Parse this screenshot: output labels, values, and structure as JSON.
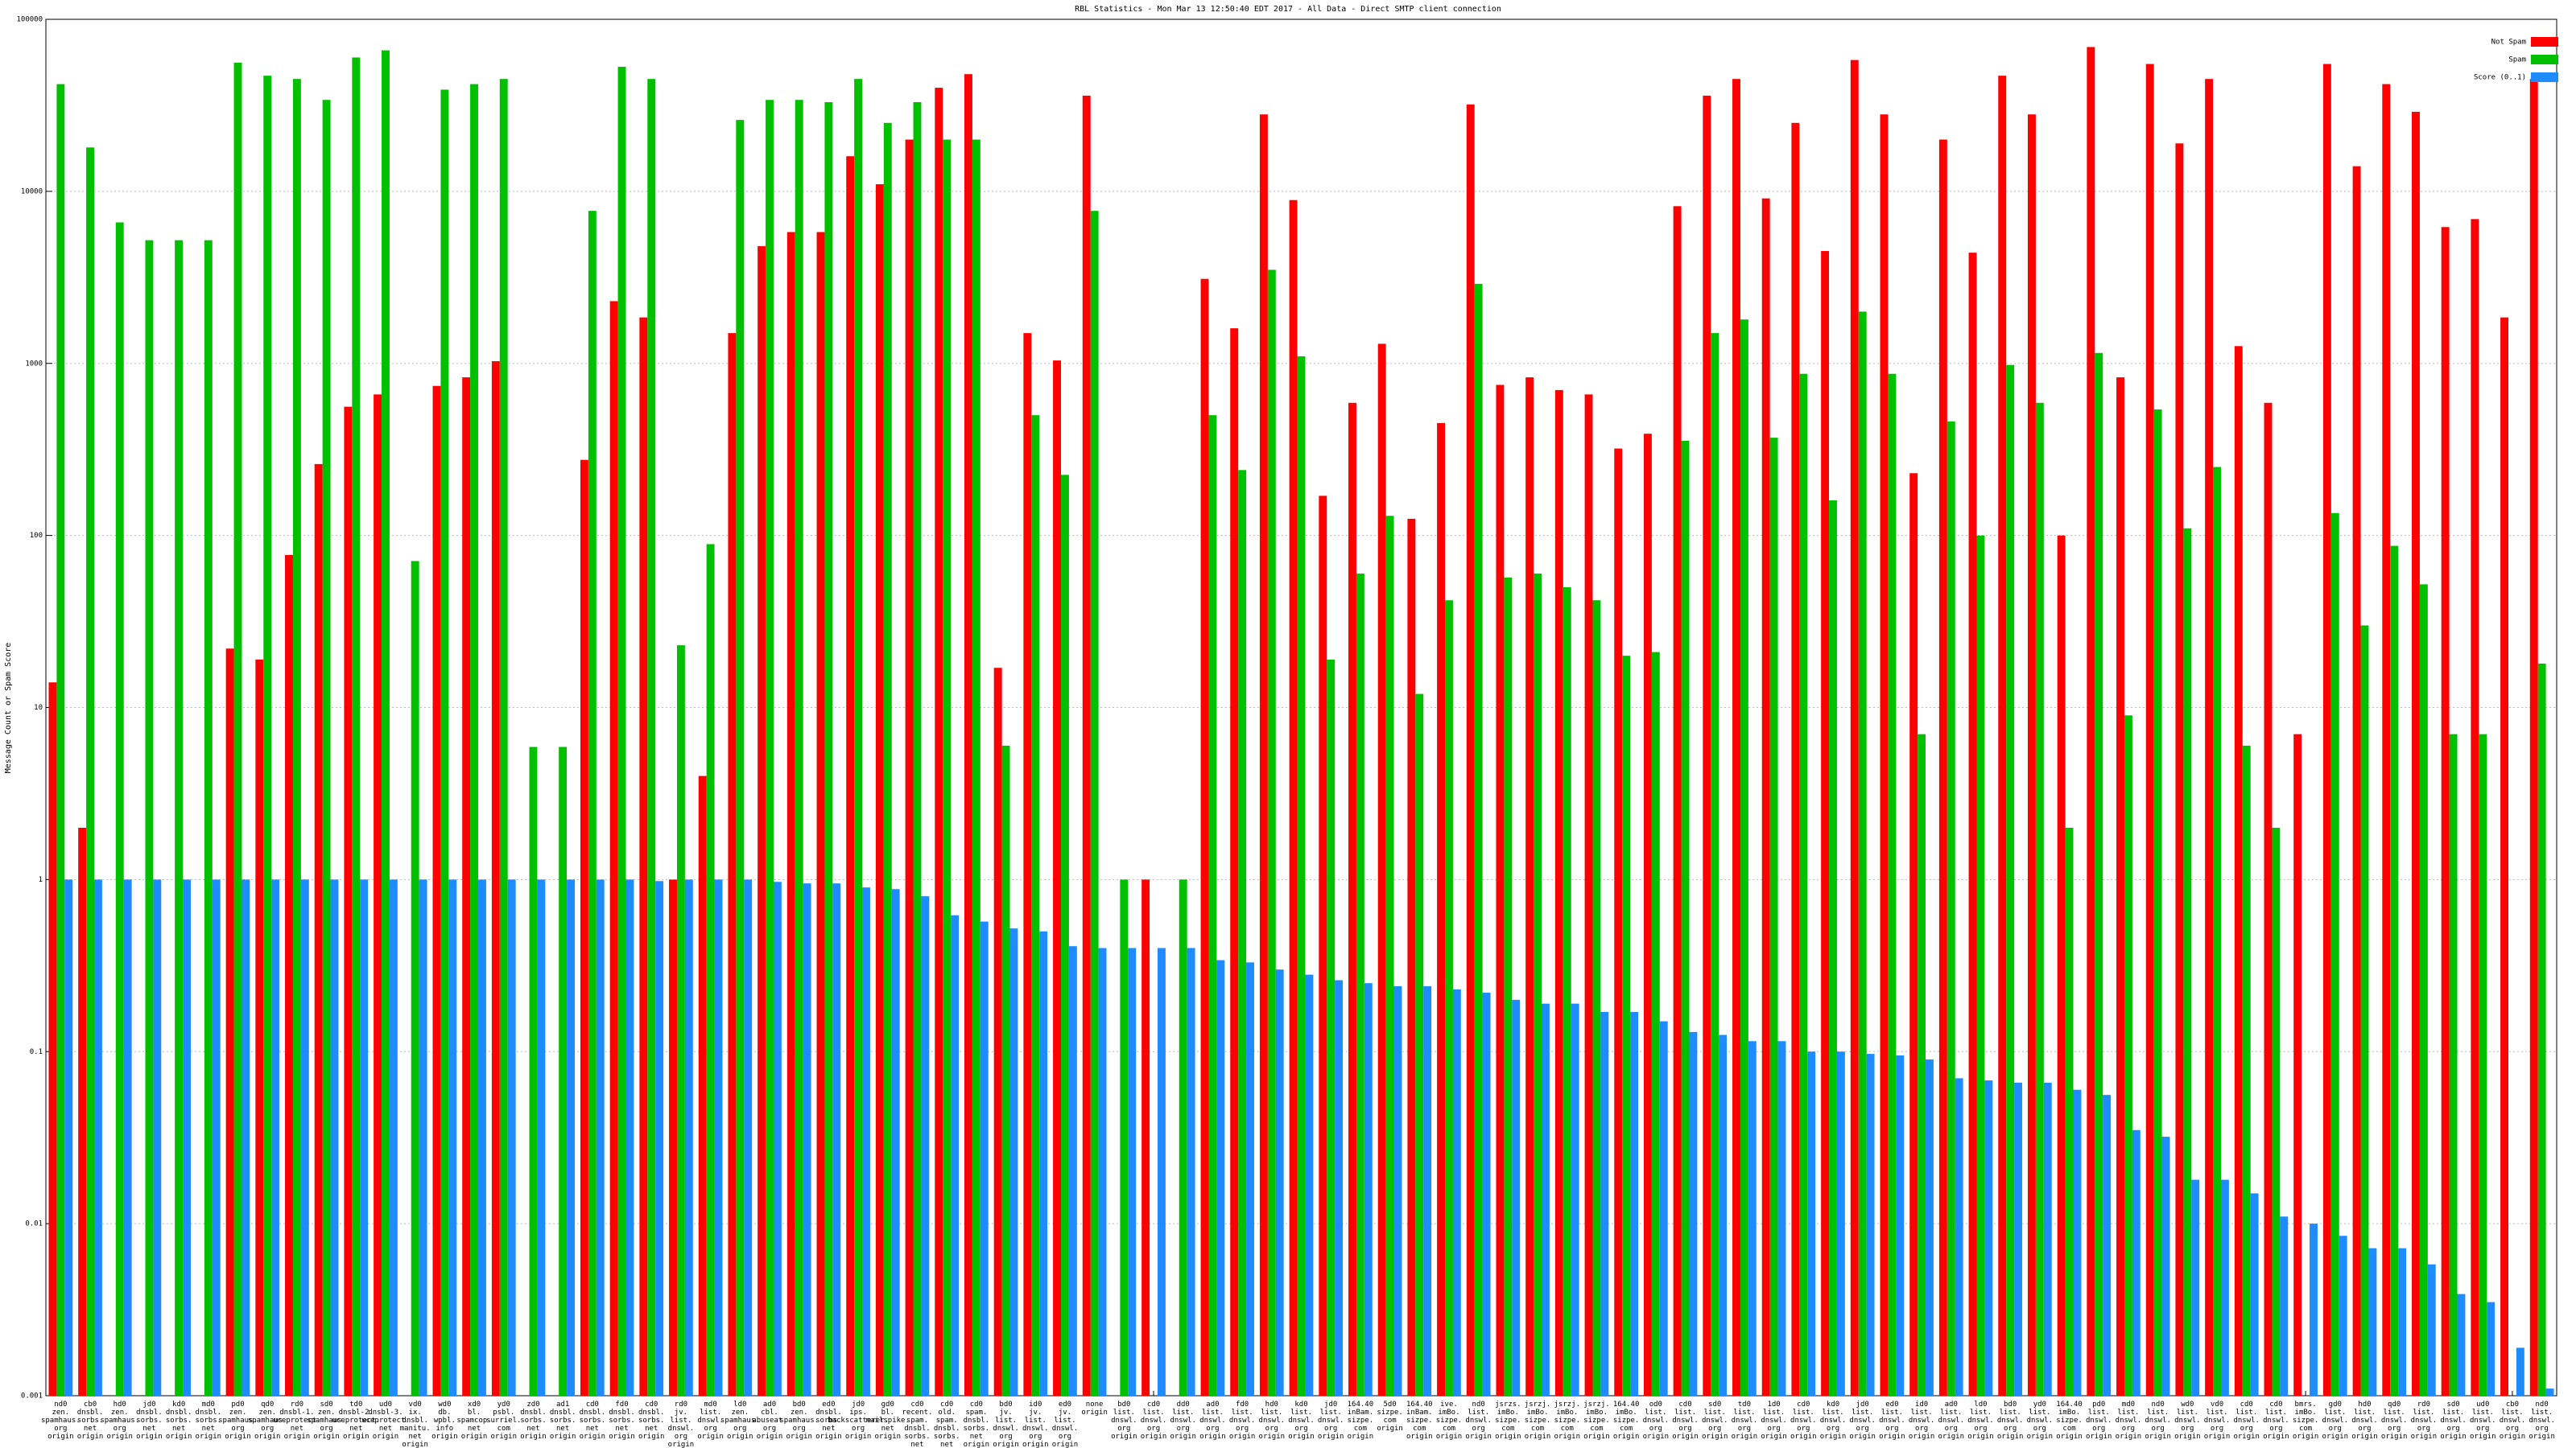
{
  "chart_data": {
    "type": "bar",
    "title": "RBL Statistics - Mon Mar 13 12:50:40 EDT 2017 - All Data - Direct SMTP client connection",
    "y_label": "Message Count or Spam Score",
    "log_y": true,
    "grid": true,
    "legend": "top-right",
    "ylim": [
      0.001,
      100000
    ],
    "yticks": [
      0.001,
      0.01,
      0.1,
      1,
      10,
      100,
      1000,
      10000,
      100000
    ],
    "categories": [
      "nd0 zen. spamhaus. org origin",
      "cb0 dnsbl. sorbs. net origin",
      "hd0 zen. spamhaus. org origin",
      "jd0 dnsbl. sorbs. net origin",
      "kd0 dnsbl. sorbs. net origin",
      "md0 dnsbl. sorbs. net origin",
      "pd0 zen. spamhaus. org origin",
      "qd0 zen. spamhaus. org origin",
      "rd0 dnsbl-1. uceprotect. net origin",
      "sd0 zen. spamhaus. org origin",
      "td0 dnsbl-2. uceprotect. net origin",
      "ud0 dnsbl-3. uceprotect. net origin",
      "vd0 ix. dnsbl. manitu. net origin",
      "wd0 db. wpbl. info origin",
      "xd0 bl. spamcop. net origin",
      "yd0 psbl. surriel. com origin",
      "zd0 dnsbl. sorbs. net origin",
      "ad1 dnsbl. sorbs. net origin",
      "cd0 dnsbl. sorbs. net origin",
      "fd0 dnsbl. sorbs. net origin",
      "cd0 dnsbl. sorbs. net origin",
      "rd0 jv. list. dnswl. org origin",
      "md0 list. dnswl. org origin",
      "ld0 zen. spamhaus. org origin",
      "ad0 cbl. abuseat. org origin",
      "bd0 zen. spamhaus. org origin",
      "ed0 dnsbl. sorbs. net origin",
      "jd0 ips. backscatterer. org origin",
      "gd0 bl. mailspike. net origin",
      "cd0 recent. spam. dnsbl. sorbs. net origin",
      "cd0 old. spam. dnsbl. sorbs. net origin",
      "cd0 spam. dnsbl. sorbs. net origin",
      "bd0 jv. list. dnswl. org origin",
      "id0 jv. list. dnswl. org origin",
      "ed0 jv. list. dnswl. org origin",
      "none origin",
      "bd0 list. dnswl. org origin",
      "cd0 list. dnswl. org origin",
      "dd0 list. dnswl. org origin",
      "ad0 list. dnswl. org origin",
      "fd0 list. dnswl. org origin",
      "hd0 list. dnswl. org origin",
      "kd0 list. dnswl. org origin",
      "jd0 list. dnswl. org origin",
      "164.40 inBam. sizpe. com origin",
      "5d0 sizpe. com origin",
      "164.40 inBam. sizpe. com origin",
      "ive. imBo. sizpe. com origin",
      "nd0 list. dnswl. org origin",
      "jsrzs. imBo. sizpe. com origin",
      "jsrzj. imBo. sizpe. com origin",
      "jsrzj. imBo. sizpe. com origin",
      "jsrzj. imBo. sizpe. com origin",
      "164.40 imBo. sizpe. com origin",
      "od0 list. dnswl. org origin",
      "cd0 list. dnswl. org origin",
      "sd0 list. dnswl. org origin",
      "td0 list. dnswl. org origin",
      "1d0 list. dnswl. org origin",
      "cd0 list. dnswl. org origin",
      "kd0 list. dnswl. org origin",
      "jd0 list. dnswl. org origin",
      "ed0 list. dnswl. org origin",
      "id0 list. dnswl. org origin",
      "ad0 list. dnswl. org origin",
      "ld0 list. dnswl. org origin",
      "bd0 list. dnswl. org origin",
      "yd0 list. dnswl. org origin",
      "164.40 imBo. sizpe. com origin",
      "pd0 list. dnswl. org origin",
      "md0 list. dnswl. org origin",
      "nd0 list. dnswl. org origin",
      "wd0 list. dnswl. org origin",
      "vd0 list. dnswl. org origin",
      "cd0 list. dnswl. org origin",
      "cd0 list. dnswl. org origin",
      "bmrs. imBo. sizpe. com origin",
      "gd0 list. dnswl. org origin",
      "hd0 list. dnswl. org origin",
      "qd0 list. dnswl. org origin",
      "rd0 list. dnswl. org origin",
      "sd0 list. dnswl. org origin",
      "ud0 list. dnswl. org origin",
      "cb0 list. dnswl. org origin",
      "nd0 list. dnswl. org origin"
    ],
    "series": [
      {
        "name": "Not Spam",
        "color": "#ff0000",
        "values": [
          14,
          2,
          null,
          null,
          null,
          null,
          22,
          19,
          77,
          260,
          560,
          660,
          null,
          740,
          830,
          1030,
          null,
          null,
          275,
          2300,
          1850,
          1,
          4,
          1500,
          4800,
          5800,
          5800,
          16000,
          11000,
          20000,
          40000,
          48000,
          17,
          1500,
          1040,
          36000,
          null,
          1,
          null,
          3100,
          1600,
          28000,
          8900,
          170,
          590,
          1300,
          125,
          450,
          32000,
          750,
          830,
          700,
          660,
          320,
          390,
          8200,
          36000,
          45000,
          9100,
          25000,
          4500,
          58000,
          28000,
          230,
          20000,
          4400,
          47000,
          28000,
          100,
          69000,
          830,
          55000,
          19000,
          45000,
          1260,
          590,
          7,
          55000,
          14000,
          42000,
          29000,
          6200,
          6900,
          1850,
          45000
        ]
      },
      {
        "name": "Spam",
        "color": "#00c000",
        "values": [
          42000,
          18000,
          6600,
          5200,
          5200,
          5200,
          56000,
          47000,
          45000,
          34000,
          60000,
          66000,
          71,
          39000,
          42000,
          45000,
          5.9,
          5.9,
          7700,
          53000,
          45000,
          23,
          89,
          26000,
          34000,
          34000,
          33000,
          45000,
          25000,
          33000,
          20000,
          20000,
          6,
          500,
          225,
          7700,
          1,
          null,
          1,
          500,
          240,
          3500,
          1100,
          19,
          60,
          130,
          12,
          42,
          2900,
          57,
          60,
          50,
          42,
          20,
          21,
          355,
          1500,
          1800,
          370,
          870,
          160,
          2000,
          870,
          7,
          460,
          100,
          980,
          590,
          2,
          1150,
          9,
          540,
          110,
          250,
          6,
          2,
          null,
          135,
          30,
          87,
          52,
          7,
          7,
          null,
          18
        ]
      },
      {
        "name": "Score (0..1)",
        "color": "#1e8cff",
        "values": [
          1,
          1,
          1,
          1,
          1,
          1,
          1,
          1,
          1,
          1,
          1,
          1,
          1,
          1,
          1,
          1,
          1,
          1,
          1,
          1,
          0.98,
          1,
          1,
          1,
          0.97,
          0.95,
          0.95,
          0.9,
          0.88,
          0.8,
          0.62,
          0.57,
          0.52,
          0.5,
          0.41,
          0.4,
          0.4,
          0.4,
          0.4,
          0.34,
          0.33,
          0.3,
          0.28,
          0.26,
          0.25,
          0.24,
          0.24,
          0.23,
          0.22,
          0.2,
          0.19,
          0.19,
          0.17,
          0.17,
          0.15,
          0.13,
          0.125,
          0.115,
          0.115,
          0.1,
          0.1,
          0.097,
          0.095,
          0.09,
          0.07,
          0.068,
          0.066,
          0.066,
          0.06,
          0.056,
          0.035,
          0.032,
          0.018,
          0.018,
          0.015,
          0.011,
          0.01,
          0.0085,
          0.0072,
          0.0072,
          0.0058,
          0.0039,
          0.0035,
          0.0019,
          0.0011
        ]
      }
    ]
  }
}
